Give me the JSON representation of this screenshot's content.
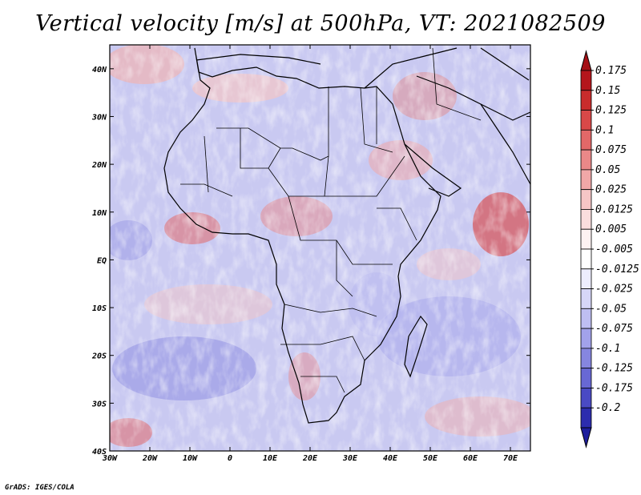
{
  "title": "Vertical velocity [m/s] at 500hPa, VT: 2021082509",
  "credit": "GrADS: IGES/COLA",
  "map": {
    "lon_range": [
      -30,
      75
    ],
    "lat_range": [
      -40,
      45
    ],
    "lat_ticks": [
      {
        "value": 40,
        "label": "40N"
      },
      {
        "value": 30,
        "label": "30N"
      },
      {
        "value": 20,
        "label": "20N"
      },
      {
        "value": 10,
        "label": "10N"
      },
      {
        "value": 0,
        "label": "EQ"
      },
      {
        "value": -10,
        "label": "10S"
      },
      {
        "value": -20,
        "label": "20S"
      },
      {
        "value": -30,
        "label": "30S"
      },
      {
        "value": -40,
        "label": "40S"
      }
    ],
    "lon_ticks": [
      {
        "value": -30,
        "label": "30W"
      },
      {
        "value": -20,
        "label": "20W"
      },
      {
        "value": -10,
        "label": "10W"
      },
      {
        "value": 0,
        "label": "0"
      },
      {
        "value": 10,
        "label": "10E"
      },
      {
        "value": 20,
        "label": "20E"
      },
      {
        "value": 30,
        "label": "30E"
      },
      {
        "value": 40,
        "label": "40E"
      },
      {
        "value": 50,
        "label": "50E"
      },
      {
        "value": 60,
        "label": "60E"
      },
      {
        "value": 70,
        "label": "70E"
      }
    ]
  },
  "colorbar": {
    "levels": [
      {
        "label": "0.175",
        "color": "#b4161c"
      },
      {
        "label": "0.15",
        "color": "#c92c2c"
      },
      {
        "label": "0.125",
        "color": "#d84848"
      },
      {
        "label": "0.1",
        "color": "#e26868"
      },
      {
        "label": "0.075",
        "color": "#ea8888"
      },
      {
        "label": "0.05",
        "color": "#f1a8a8"
      },
      {
        "label": "0.025",
        "color": "#f6c6c6"
      },
      {
        "label": "0.0125",
        "color": "#fadede"
      },
      {
        "label": "0.005",
        "color": "#fdf2f2"
      },
      {
        "label": "-0.005",
        "color": "#ffffff"
      },
      {
        "label": "-0.0125",
        "color": "#ededfd"
      },
      {
        "label": "-0.025",
        "color": "#d6d6f8"
      },
      {
        "label": "-0.05",
        "color": "#bebef2"
      },
      {
        "label": "-0.075",
        "color": "#a2a2ea"
      },
      {
        "label": "-0.1",
        "color": "#8686e0"
      },
      {
        "label": "-0.125",
        "color": "#6868d4"
      },
      {
        "label": "-0.175",
        "color": "#4a4ac4"
      },
      {
        "label": "-0.2",
        "color": "#2c2cae"
      }
    ],
    "top_arrow_color": "#a50f15",
    "bottom_arrow_color": "#1d1d9c"
  }
}
